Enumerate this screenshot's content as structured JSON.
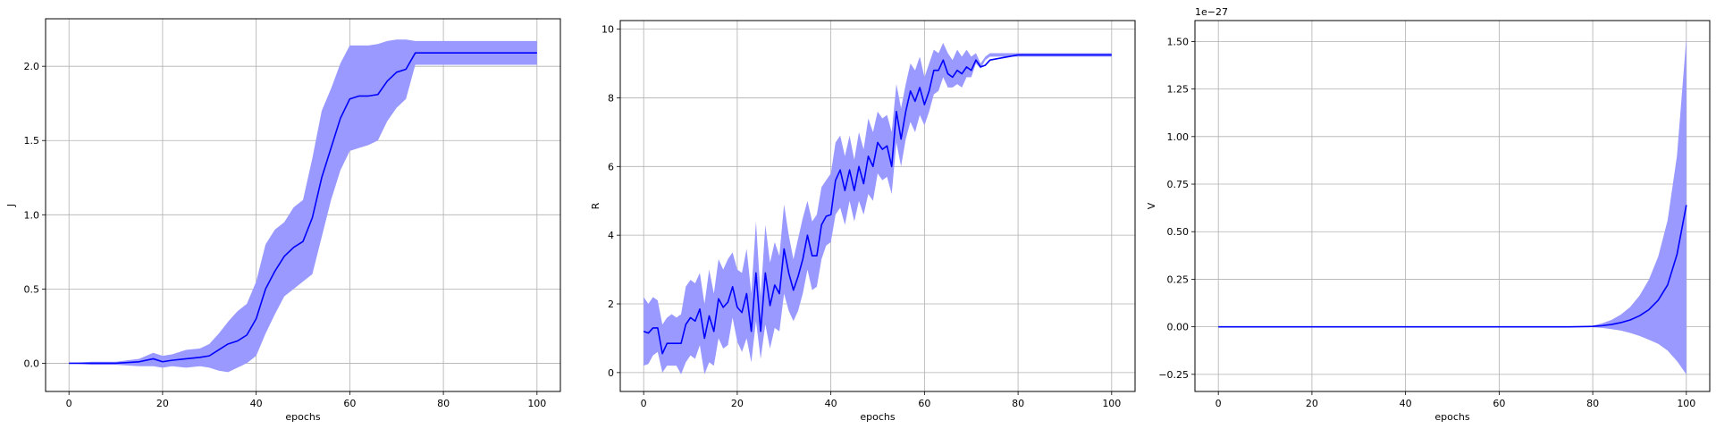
{
  "colors": {
    "line": "#0000ff",
    "band": "#9999ff",
    "grid": "#b0b0b0"
  },
  "chart_data": [
    {
      "type": "line",
      "xlabel": "epochs",
      "ylabel": "J",
      "offset_text": "",
      "xlim": [
        -5,
        105
      ],
      "ylim": [
        -0.19,
        2.32
      ],
      "xticks": [
        0,
        20,
        40,
        60,
        80,
        100
      ],
      "xtick_labels": [
        "0",
        "20",
        "40",
        "60",
        "80",
        "100"
      ],
      "yticks": [
        0.0,
        0.5,
        1.0,
        1.5,
        2.0
      ],
      "ytick_labels": [
        "0.0",
        "0.5",
        "1.0",
        "1.5",
        "2.0"
      ],
      "grid": true,
      "series": [
        {
          "x": [
            0,
            5,
            10,
            15,
            18,
            20,
            22,
            25,
            28,
            30,
            32,
            34,
            36,
            38,
            40,
            42,
            44,
            46,
            48,
            50,
            52,
            54,
            56,
            58,
            60,
            62,
            64,
            66,
            68,
            70,
            72,
            74,
            80,
            90,
            100
          ],
          "y": [
            0.0,
            0.0,
            0.0,
            0.01,
            0.03,
            0.01,
            0.02,
            0.03,
            0.04,
            0.05,
            0.09,
            0.13,
            0.15,
            0.19,
            0.3,
            0.5,
            0.62,
            0.72,
            0.78,
            0.82,
            0.98,
            1.25,
            1.45,
            1.65,
            1.78,
            1.8,
            1.8,
            1.81,
            1.9,
            1.96,
            1.98,
            2.09,
            2.09,
            2.09,
            2.09
          ],
          "y_lower": [
            0.0,
            -0.01,
            -0.01,
            -0.02,
            -0.02,
            -0.03,
            -0.02,
            -0.03,
            -0.02,
            -0.03,
            -0.05,
            -0.06,
            -0.03,
            0.0,
            0.05,
            0.2,
            0.33,
            0.45,
            0.5,
            0.55,
            0.6,
            0.85,
            1.1,
            1.3,
            1.43,
            1.45,
            1.47,
            1.5,
            1.63,
            1.72,
            1.78,
            2.01,
            2.01,
            2.01,
            2.01
          ],
          "y_upper": [
            0.0,
            0.01,
            0.01,
            0.03,
            0.07,
            0.05,
            0.06,
            0.09,
            0.1,
            0.13,
            0.2,
            0.28,
            0.35,
            0.4,
            0.55,
            0.8,
            0.9,
            0.95,
            1.05,
            1.1,
            1.38,
            1.7,
            1.85,
            2.02,
            2.14,
            2.14,
            2.14,
            2.15,
            2.17,
            2.18,
            2.18,
            2.17,
            2.17,
            2.17,
            2.17
          ]
        }
      ]
    },
    {
      "type": "line",
      "xlabel": "epochs",
      "ylabel": "R",
      "offset_text": "",
      "xlim": [
        -5,
        105
      ],
      "ylim": [
        -0.55,
        10.25
      ],
      "xticks": [
        0,
        20,
        40,
        60,
        80,
        100
      ],
      "xtick_labels": [
        "0",
        "20",
        "40",
        "60",
        "80",
        "100"
      ],
      "yticks": [
        0,
        2,
        4,
        6,
        8,
        10
      ],
      "ytick_labels": [
        "0",
        "2",
        "4",
        "6",
        "8",
        "10"
      ],
      "grid": true,
      "series": [
        {
          "x": [
            0,
            1,
            2,
            3,
            4,
            5,
            6,
            7,
            8,
            9,
            10,
            11,
            12,
            13,
            14,
            15,
            16,
            17,
            18,
            19,
            20,
            21,
            22,
            23,
            24,
            25,
            26,
            27,
            28,
            29,
            30,
            31,
            32,
            33,
            34,
            35,
            36,
            37,
            38,
            39,
            40,
            41,
            42,
            43,
            44,
            45,
            46,
            47,
            48,
            49,
            50,
            51,
            52,
            53,
            54,
            55,
            56,
            57,
            58,
            59,
            60,
            61,
            62,
            63,
            64,
            65,
            66,
            67,
            68,
            69,
            70,
            71,
            72,
            73,
            74,
            80,
            90,
            100
          ],
          "y": [
            1.2,
            1.15,
            1.3,
            1.3,
            0.55,
            0.85,
            0.85,
            0.85,
            0.85,
            1.4,
            1.6,
            1.5,
            1.85,
            1.0,
            1.65,
            1.2,
            2.15,
            1.9,
            2.05,
            2.5,
            1.9,
            1.75,
            2.3,
            1.2,
            2.9,
            1.2,
            2.9,
            1.95,
            2.55,
            2.3,
            3.6,
            2.9,
            2.4,
            2.8,
            3.3,
            4.0,
            3.4,
            3.4,
            4.3,
            4.55,
            4.6,
            5.6,
            5.9,
            5.3,
            5.9,
            5.3,
            6.0,
            5.5,
            6.3,
            6.0,
            6.7,
            6.5,
            6.6,
            6.0,
            7.6,
            6.8,
            7.6,
            8.2,
            7.9,
            8.3,
            7.8,
            8.2,
            8.8,
            8.8,
            9.1,
            8.7,
            8.6,
            8.8,
            8.7,
            8.9,
            8.8,
            9.1,
            8.9,
            8.95,
            9.1,
            9.25,
            9.25,
            9.25
          ],
          "y_lower": [
            0.2,
            0.25,
            0.5,
            0.6,
            0.0,
            0.2,
            0.2,
            0.2,
            -0.05,
            0.3,
            0.5,
            0.4,
            0.8,
            -0.05,
            0.3,
            0.2,
            1.0,
            0.7,
            0.8,
            1.6,
            0.9,
            0.6,
            1.0,
            0.3,
            1.5,
            0.4,
            1.4,
            0.7,
            1.3,
            1.2,
            2.3,
            1.8,
            1.5,
            1.8,
            2.3,
            3.0,
            2.4,
            2.5,
            3.3,
            3.7,
            3.8,
            4.6,
            4.8,
            4.3,
            5.0,
            4.4,
            5.0,
            4.6,
            5.2,
            5.0,
            5.8,
            5.6,
            5.7,
            5.2,
            6.7,
            6.0,
            6.8,
            7.3,
            7.0,
            7.5,
            7.2,
            7.6,
            8.1,
            8.2,
            8.6,
            8.3,
            8.3,
            8.4,
            8.3,
            8.6,
            8.6,
            9.0,
            8.85,
            9.1,
            9.2,
            9.2,
            9.2,
            9.2
          ],
          "y_upper": [
            2.2,
            2.0,
            2.2,
            2.1,
            1.4,
            1.6,
            1.7,
            1.6,
            1.7,
            2.5,
            2.7,
            2.6,
            2.9,
            2.0,
            3.0,
            2.3,
            3.3,
            3.0,
            3.3,
            3.5,
            3.0,
            2.9,
            3.6,
            2.3,
            4.4,
            2.2,
            4.3,
            3.2,
            3.8,
            3.4,
            4.9,
            4.0,
            3.3,
            3.9,
            4.5,
            5.0,
            4.4,
            4.6,
            5.4,
            5.6,
            5.8,
            6.7,
            6.9,
            6.3,
            6.9,
            6.2,
            7.0,
            6.5,
            7.4,
            7.0,
            7.6,
            7.4,
            7.5,
            7.0,
            8.4,
            7.7,
            8.4,
            9.0,
            8.8,
            9.2,
            8.6,
            9.0,
            9.4,
            9.3,
            9.6,
            9.3,
            9.1,
            9.4,
            9.2,
            9.4,
            9.2,
            9.3,
            9.0,
            9.2,
            9.3,
            9.3,
            9.3,
            9.3
          ]
        }
      ]
    },
    {
      "type": "line",
      "xlabel": "epochs",
      "ylabel": "V",
      "offset_text": "1e−27",
      "xlim": [
        -5,
        105
      ],
      "ylim": [
        -0.34,
        1.61
      ],
      "xticks": [
        0,
        20,
        40,
        60,
        80,
        100
      ],
      "xtick_labels": [
        "0",
        "20",
        "40",
        "60",
        "80",
        "100"
      ],
      "yticks": [
        -0.25,
        0.0,
        0.25,
        0.5,
        0.75,
        1.0,
        1.25,
        1.5
      ],
      "ytick_labels": [
        "−0.25",
        "0.00",
        "0.25",
        "0.50",
        "0.75",
        "1.00",
        "1.25",
        "1.50"
      ],
      "grid": true,
      "series": [
        {
          "x": [
            0,
            20,
            40,
            60,
            75,
            80,
            82,
            84,
            86,
            88,
            90,
            92,
            94,
            96,
            98,
            100
          ],
          "y": [
            0,
            0,
            0,
            0,
            0.0,
            0.002,
            0.006,
            0.012,
            0.022,
            0.036,
            0.058,
            0.09,
            0.14,
            0.22,
            0.38,
            0.64
          ],
          "y_lower": [
            0,
            0,
            0,
            0,
            0.0,
            -0.002,
            -0.006,
            -0.012,
            -0.02,
            -0.032,
            -0.048,
            -0.068,
            -0.09,
            -0.125,
            -0.18,
            -0.25
          ],
          "y_upper": [
            0,
            0,
            0,
            0,
            0.0,
            0.006,
            0.018,
            0.036,
            0.064,
            0.104,
            0.164,
            0.248,
            0.37,
            0.56,
            0.9,
            1.52
          ]
        }
      ]
    }
  ]
}
